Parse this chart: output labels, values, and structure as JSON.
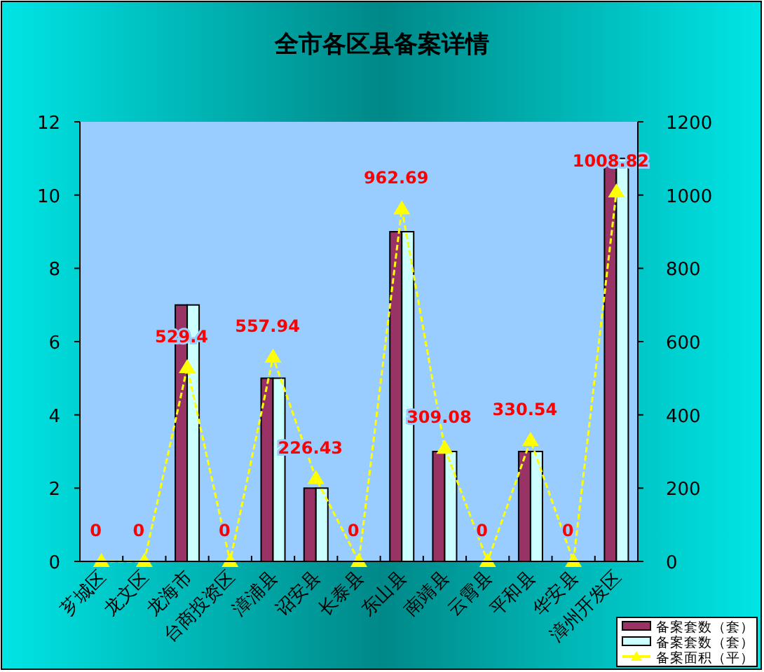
{
  "chart_data": {
    "type": "bar",
    "title": "全市各区县备案详情",
    "categories": [
      "芗城区",
      "龙文区",
      "龙海市",
      "台商投资区",
      "漳浦县",
      "诏安县",
      "长泰县",
      "东山县",
      "南靖县",
      "云霄县",
      "平和县",
      "华安县",
      "漳州开发区"
    ],
    "series": [
      {
        "name": "备案套数（套）",
        "color": "#993366",
        "values": [
          0,
          0,
          7,
          0,
          5,
          2,
          0,
          9,
          3,
          0,
          3,
          0,
          11
        ]
      },
      {
        "name": "备案套数（套）",
        "color": "#ccffff",
        "values": [
          0,
          0,
          7,
          0,
          5,
          2,
          0,
          9,
          3,
          0,
          3,
          0,
          11
        ]
      },
      {
        "name": "备案面积（平）",
        "type": "line",
        "axis": "y2",
        "color": "#ffff00",
        "marker": "triangle",
        "line_style": "dashed",
        "values": [
          0,
          0,
          529.4,
          0,
          557.94,
          226.43,
          0,
          962.69,
          309.08,
          0,
          330.54,
          0,
          1008.82
        ],
        "value_labels": [
          "0",
          "0",
          "529.4",
          "0",
          "557.94",
          "226.43",
          "0",
          "962.69",
          "309.08",
          "0",
          "330.54",
          "0",
          "1008.82"
        ]
      }
    ],
    "ylim": [
      0,
      12
    ],
    "yticks": [
      0,
      2,
      4,
      6,
      8,
      10,
      12
    ],
    "y2lim": [
      0,
      1200
    ],
    "y2ticks": [
      0,
      200,
      400,
      600,
      800,
      1000,
      1200
    ],
    "grid": false,
    "legend": "bottom right"
  }
}
